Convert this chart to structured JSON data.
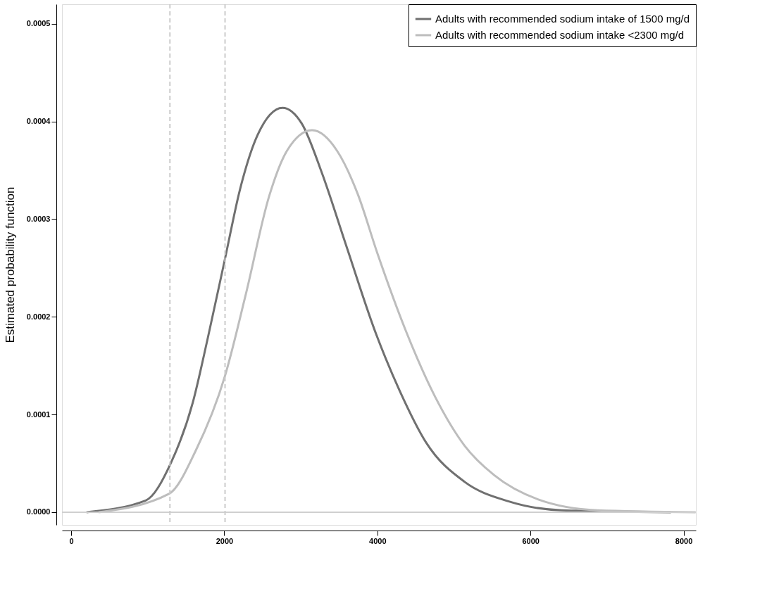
{
  "chart_data": {
    "type": "line",
    "ylabel": "Estimated probability function",
    "xlim": [
      -120,
      8160
    ],
    "xticks": [
      0,
      2000,
      4000,
      6000,
      8000
    ],
    "ylim": [
      -1.3e-05,
      0.00052
    ],
    "yticks": [
      {
        "value": 0,
        "label": "0.0000"
      },
      0.0001,
      0.0002,
      0.0003,
      0.0004,
      0.0005
    ],
    "legend": "top right",
    "grid": false,
    "marker": "none",
    "line_style": "solid",
    "ref_lines": [
      {
        "axis": "y",
        "value": 0,
        "color": "#d0d0d0",
        "line_style": "solid"
      },
      {
        "axis": "x",
        "value": 1290,
        "color": "#cccccc",
        "line_style": "dashed"
      },
      {
        "axis": "x",
        "value": 2010,
        "color": "#cccccc",
        "line_style": "dashed"
      }
    ],
    "series": [
      {
        "name": "Adults with recommended sodium intake of 1500 mg/d",
        "color": "#707070",
        "x": [
          200,
          973,
          1300,
          1588,
          1781,
          2011,
          2204,
          2434,
          2761,
          3011,
          3281,
          3588,
          3985,
          4293,
          4639,
          5140,
          5717,
          6408,
          7834
        ],
        "values": [
          0,
          1.2e-05,
          5e-05,
          0.000112,
          0.000177,
          0.00026,
          0.00033,
          0.000386,
          0.000414,
          0.000398,
          0.000346,
          0.000274,
          0.000182,
          0.000124,
          7.1e-05,
          3.1e-05,
          1.1e-05,
          2e-06,
          0
        ]
      },
      {
        "name": "Adults with recommended sodium intake <2300 mg/d",
        "color": "#bdbdbd",
        "x": [
          358,
          1281,
          1627,
          2011,
          2281,
          2588,
          2819,
          3146,
          3473,
          3742,
          4000,
          4370,
          4755,
          5140,
          5524,
          6102,
          6872,
          8157
        ],
        "values": [
          0,
          1.9e-05,
          6.3e-05,
          0.00014,
          0.000223,
          0.000324,
          0.00037,
          0.000391,
          0.00037,
          0.000326,
          0.000265,
          0.000186,
          0.000118,
          6.8e-05,
          3.8e-05,
          1.3e-05,
          2e-06,
          0
        ]
      }
    ]
  }
}
